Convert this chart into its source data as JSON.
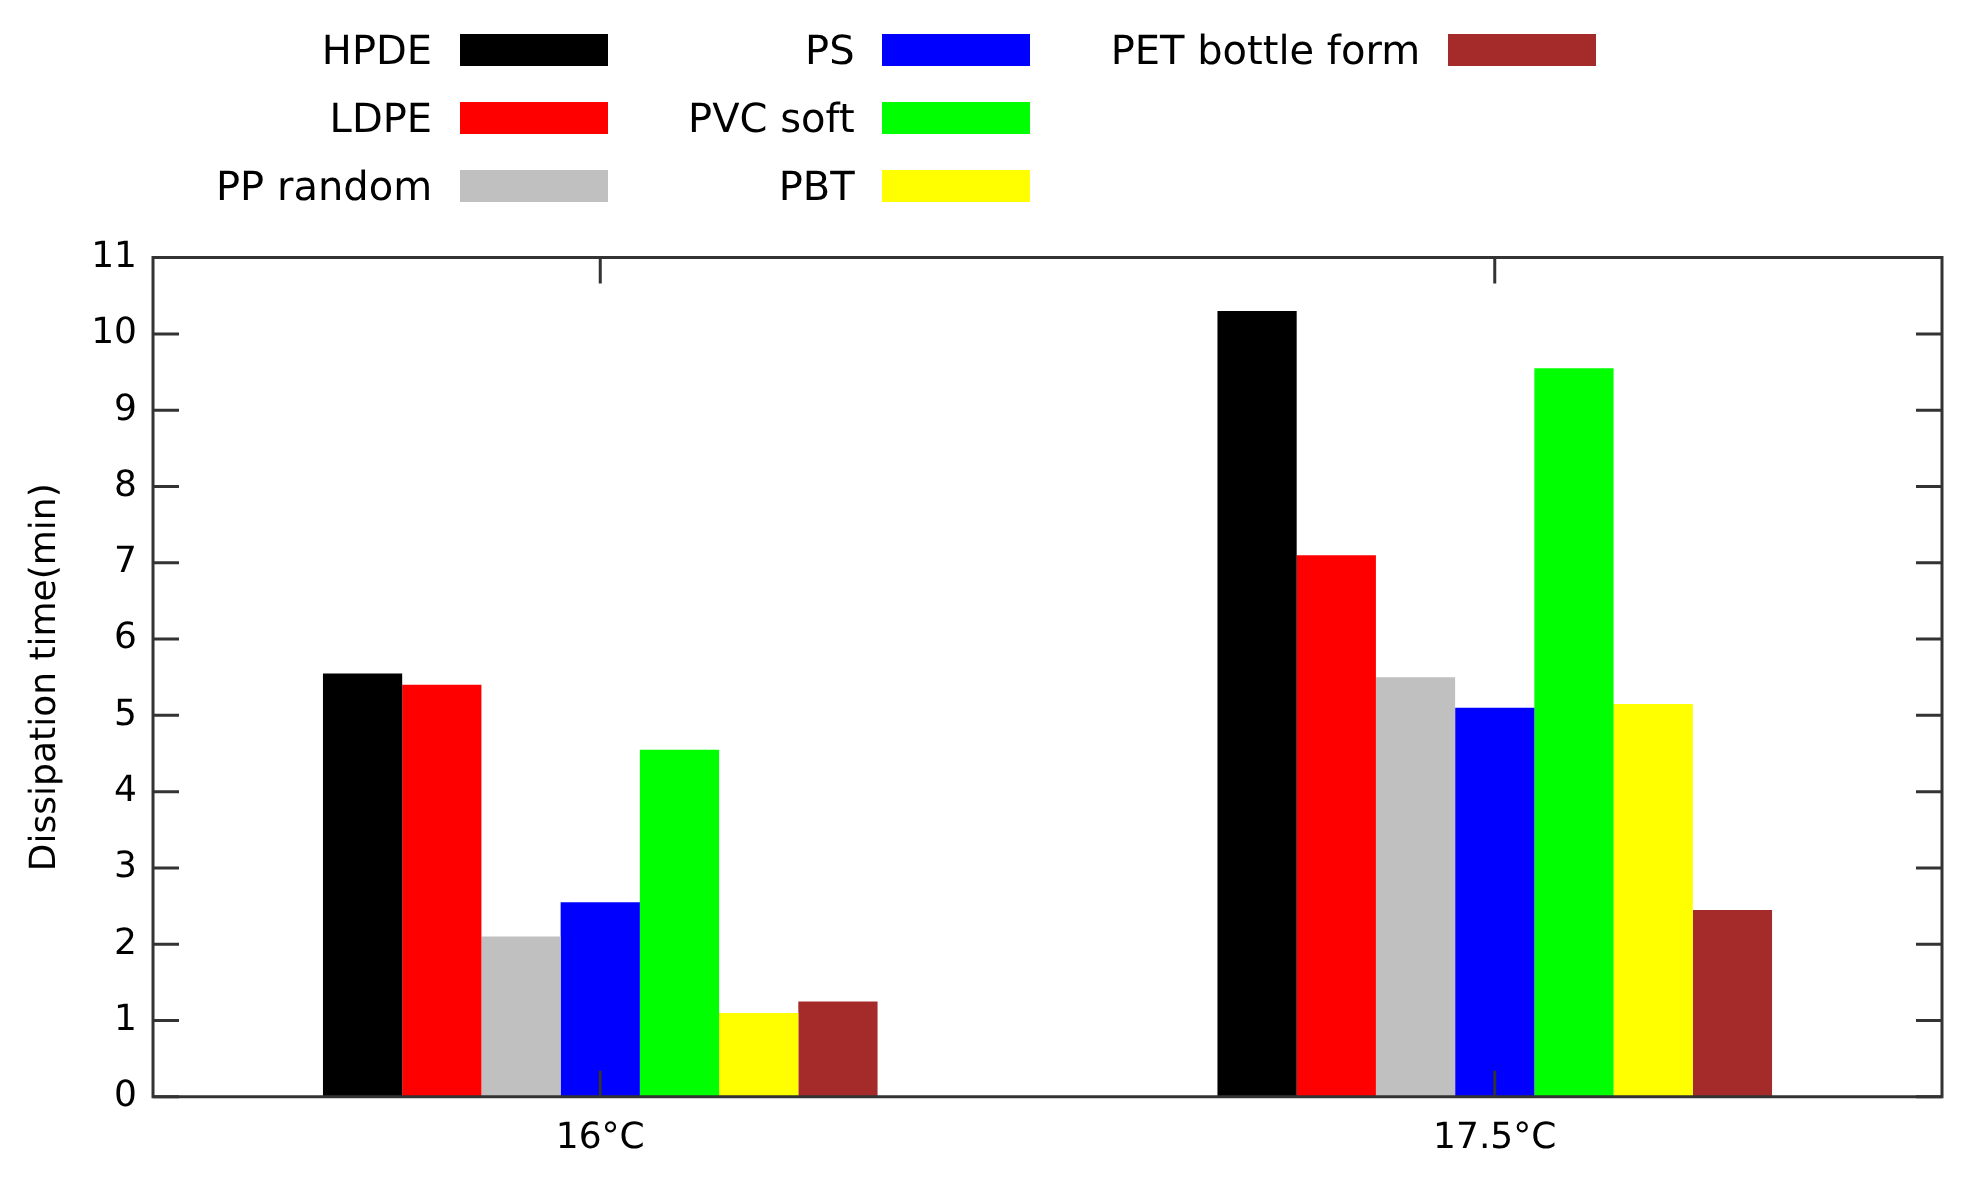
{
  "chart_data": {
    "type": "bar",
    "ylabel": "Dissipation time(min)",
    "categories": [
      "16°C",
      "17.5°C"
    ],
    "series": [
      {
        "name": "HPDE",
        "color": "#000000",
        "values": [
          5.55,
          10.3
        ]
      },
      {
        "name": "LDPE",
        "color": "#ff0000",
        "values": [
          5.4,
          7.1
        ]
      },
      {
        "name": "PP random",
        "color": "#c0c0c0",
        "values": [
          2.1,
          5.5
        ]
      },
      {
        "name": "PS",
        "color": "#0000ff",
        "values": [
          2.55,
          5.1
        ]
      },
      {
        "name": "PVC soft",
        "color": "#00ff00",
        "values": [
          4.55,
          9.55
        ]
      },
      {
        "name": "PBT",
        "color": "#ffff00",
        "values": [
          1.1,
          5.15
        ]
      },
      {
        "name": "PET bottle form",
        "color": "#a52a2a",
        "values": [
          1.25,
          2.45
        ]
      }
    ],
    "ylim": [
      0,
      11
    ],
    "yticks": [
      0,
      1,
      2,
      3,
      4,
      5,
      6,
      7,
      8,
      9,
      10,
      11
    ],
    "grid": false,
    "legend": "top"
  }
}
